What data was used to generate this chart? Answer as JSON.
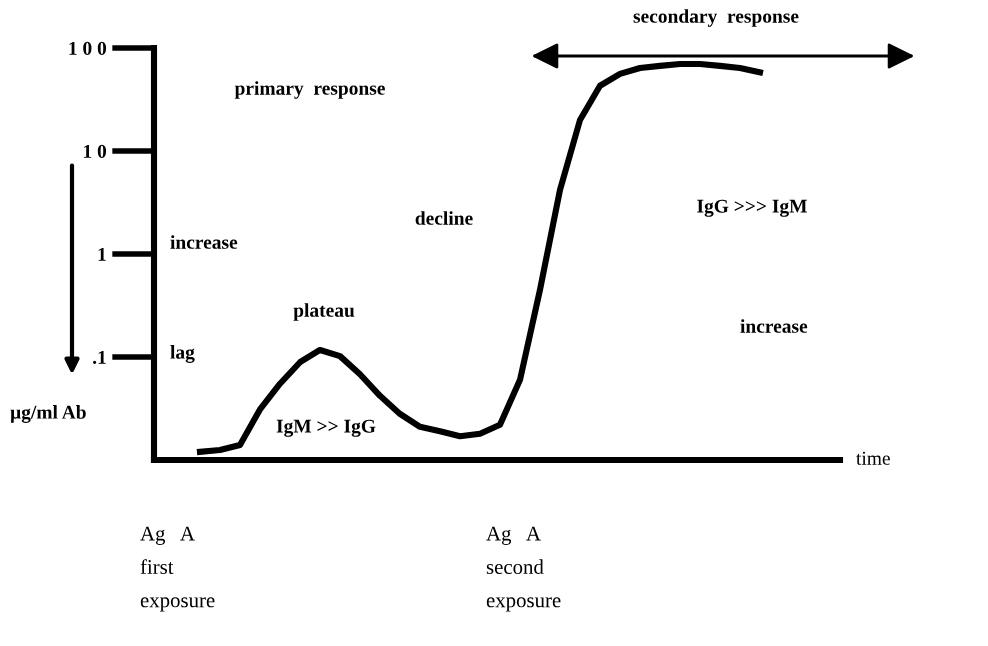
{
  "chart_data": {
    "type": "line",
    "xlabel": "time",
    "ylabel": "µg/ml Ab",
    "categories": [
      null,
      null,
      null,
      null,
      null,
      null,
      null,
      null,
      null,
      null,
      null,
      null,
      null,
      null,
      null,
      null,
      null,
      null,
      null,
      null,
      null,
      null,
      null,
      null,
      null,
      null,
      null,
      null,
      null
    ],
    "series": [
      {
        "color": "#000000",
        "values": [
          0.012,
          0.0125,
          0.014,
          0.031,
          0.055,
          0.089,
          0.117,
          0.102,
          0.068,
          0.042,
          0.028,
          0.021,
          0.019,
          0.017,
          0.018,
          0.022,
          0.06,
          0.45,
          4.2,
          20,
          43,
          56,
          64,
          67,
          70,
          70,
          67,
          64,
          58
        ]
      }
    ],
    "log": "y",
    "ylim": [
      0.01,
      100
    ],
    "yticks": [
      {
        "value": 100,
        "label": "1 0 0"
      },
      {
        "value": 10,
        "label": "1 0"
      },
      1,
      {
        "value": 0.1,
        "label": ".1"
      }
    ],
    "grid": false,
    "legend": false,
    "marker": "none",
    "line_style": "solid",
    "annotations": [
      "primary  response",
      "increase",
      "lag",
      "plateau",
      "decline",
      "IgM >> IgG",
      "secondary  response",
      "IgG >>> IgM",
      "increase",
      "Ag   A\nfirst\nexposure",
      "Ag   A\nsecond\nexposure"
    ]
  }
}
